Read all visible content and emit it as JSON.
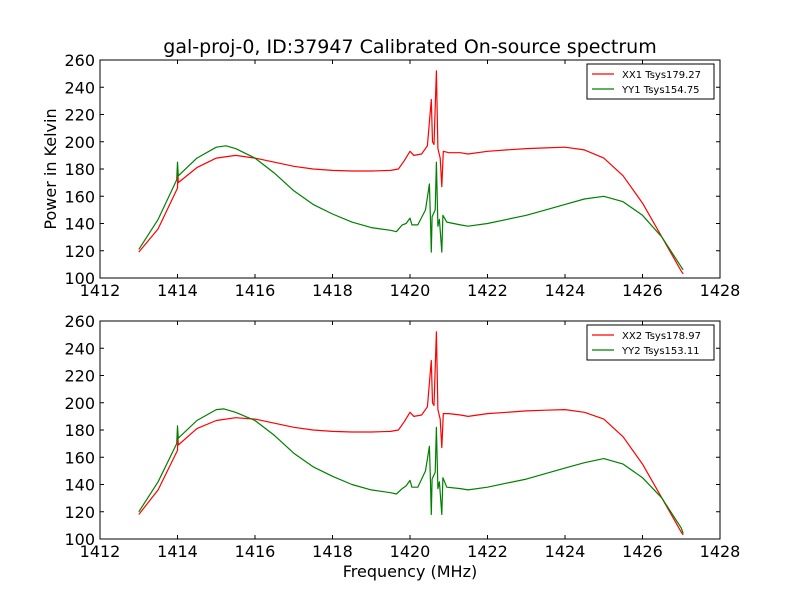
{
  "chart_data": [
    {
      "type": "line",
      "title": "gal-proj-0, ID:37947 Calibrated On-source spectrum",
      "xlabel": "",
      "ylabel": "Power in Kelvin",
      "xlim": [
        1412,
        1428
      ],
      "ylim": [
        100,
        260
      ],
      "xticks": [
        "1412",
        "1414",
        "1416",
        "1418",
        "1420",
        "1422",
        "1424",
        "1426",
        "1428"
      ],
      "yticks": [
        "100",
        "120",
        "140",
        "160",
        "180",
        "200",
        "220",
        "240",
        "260"
      ],
      "grid": false,
      "legend_position": "top-right",
      "series": [
        {
          "name": "XX1 Tsys179.27",
          "color": "#ff0000",
          "points": [
            [
              1413.0,
              119
            ],
            [
              1413.5,
              136
            ],
            [
              1414.0,
              166
            ],
            [
              1414.01,
              177
            ],
            [
              1414.02,
              170
            ],
            [
              1414.5,
              181
            ],
            [
              1415.0,
              188
            ],
            [
              1415.5,
              190
            ],
            [
              1416.0,
              188
            ],
            [
              1416.5,
              185
            ],
            [
              1417.0,
              182
            ],
            [
              1417.5,
              180
            ],
            [
              1418.0,
              179
            ],
            [
              1418.5,
              178.5
            ],
            [
              1419.0,
              178.5
            ],
            [
              1419.5,
              179
            ],
            [
              1419.7,
              180
            ],
            [
              1419.85,
              186
            ],
            [
              1420.0,
              193
            ],
            [
              1420.1,
              190
            ],
            [
              1420.3,
              191
            ],
            [
              1420.45,
              197
            ],
            [
              1420.55,
              231
            ],
            [
              1420.58,
              200
            ],
            [
              1420.62,
              198
            ],
            [
              1420.68,
              252
            ],
            [
              1420.72,
              195
            ],
            [
              1420.78,
              188
            ],
            [
              1420.82,
              167
            ],
            [
              1420.86,
              193
            ],
            [
              1421.0,
              192
            ],
            [
              1421.3,
              192
            ],
            [
              1421.5,
              191
            ],
            [
              1422.0,
              193
            ],
            [
              1422.5,
              194
            ],
            [
              1423.0,
              195
            ],
            [
              1423.5,
              195.5
            ],
            [
              1424.0,
              196
            ],
            [
              1424.5,
              194
            ],
            [
              1425.0,
              188
            ],
            [
              1425.5,
              175
            ],
            [
              1426.0,
              155
            ],
            [
              1426.5,
              130
            ],
            [
              1427.0,
              105
            ],
            [
              1427.05,
              103
            ]
          ]
        },
        {
          "name": "YY1 Tsys154.75",
          "color": "#008000",
          "points": [
            [
              1413.0,
              121
            ],
            [
              1413.5,
              143
            ],
            [
              1413.98,
              172
            ],
            [
              1414.0,
              185
            ],
            [
              1414.02,
              175
            ],
            [
              1414.5,
              188
            ],
            [
              1415.0,
              196
            ],
            [
              1415.25,
              197
            ],
            [
              1415.5,
              195
            ],
            [
              1416.0,
              188
            ],
            [
              1416.5,
              177
            ],
            [
              1417.0,
              164
            ],
            [
              1417.5,
              154
            ],
            [
              1418.0,
              147
            ],
            [
              1418.5,
              141
            ],
            [
              1419.0,
              137
            ],
            [
              1419.5,
              135
            ],
            [
              1419.65,
              134
            ],
            [
              1419.8,
              139
            ],
            [
              1419.9,
              140
            ],
            [
              1420.0,
              144
            ],
            [
              1420.05,
              139
            ],
            [
              1420.2,
              139
            ],
            [
              1420.4,
              150
            ],
            [
              1420.5,
              169
            ],
            [
              1420.53,
              142
            ],
            [
              1420.55,
              119
            ],
            [
              1420.57,
              145
            ],
            [
              1420.65,
              150
            ],
            [
              1420.68,
              185
            ],
            [
              1420.72,
              138
            ],
            [
              1420.76,
              143
            ],
            [
              1420.82,
              119
            ],
            [
              1420.85,
              146
            ],
            [
              1420.95,
              141
            ],
            [
              1421.3,
              139
            ],
            [
              1421.5,
              138
            ],
            [
              1422.0,
              140
            ],
            [
              1422.5,
              143
            ],
            [
              1423.0,
              146
            ],
            [
              1423.5,
              150
            ],
            [
              1424.0,
              154
            ],
            [
              1424.5,
              158
            ],
            [
              1425.0,
              160
            ],
            [
              1425.5,
              156
            ],
            [
              1426.0,
              146
            ],
            [
              1426.5,
              130
            ],
            [
              1427.0,
              108
            ],
            [
              1427.05,
              106
            ]
          ]
        }
      ]
    },
    {
      "type": "line",
      "title": "",
      "xlabel": "Frequency (MHz)",
      "ylabel": "",
      "xlim": [
        1412,
        1428
      ],
      "ylim": [
        100,
        260
      ],
      "xticks": [
        "1412",
        "1414",
        "1416",
        "1418",
        "1420",
        "1422",
        "1424",
        "1426",
        "1428"
      ],
      "yticks": [
        "100",
        "120",
        "140",
        "160",
        "180",
        "200",
        "220",
        "240",
        "260"
      ],
      "grid": false,
      "legend_position": "top-right",
      "series": [
        {
          "name": "XX2 Tsys178.97",
          "color": "#ff0000",
          "points": [
            [
              1413.0,
              118
            ],
            [
              1413.5,
              136
            ],
            [
              1414.0,
              165
            ],
            [
              1414.01,
              175
            ],
            [
              1414.02,
              169
            ],
            [
              1414.5,
              181
            ],
            [
              1415.0,
              187
            ],
            [
              1415.5,
              189
            ],
            [
              1416.0,
              188
            ],
            [
              1416.5,
              185
            ],
            [
              1417.0,
              182
            ],
            [
              1417.5,
              180
            ],
            [
              1418.0,
              179
            ],
            [
              1418.5,
              178.5
            ],
            [
              1419.0,
              178.5
            ],
            [
              1419.5,
              179
            ],
            [
              1419.7,
              180
            ],
            [
              1419.85,
              186
            ],
            [
              1420.0,
              193
            ],
            [
              1420.1,
              190
            ],
            [
              1420.3,
              191
            ],
            [
              1420.45,
              197
            ],
            [
              1420.55,
              231
            ],
            [
              1420.58,
              200
            ],
            [
              1420.62,
              198
            ],
            [
              1420.68,
              252
            ],
            [
              1420.72,
              195
            ],
            [
              1420.78,
              188
            ],
            [
              1420.82,
              167
            ],
            [
              1420.86,
              192
            ],
            [
              1421.0,
              192
            ],
            [
              1421.3,
              191
            ],
            [
              1421.5,
              190
            ],
            [
              1422.0,
              192
            ],
            [
              1422.5,
              193
            ],
            [
              1423.0,
              194
            ],
            [
              1423.5,
              194.5
            ],
            [
              1424.0,
              195
            ],
            [
              1424.5,
              193
            ],
            [
              1425.0,
              188
            ],
            [
              1425.5,
              175
            ],
            [
              1426.0,
              155
            ],
            [
              1426.5,
              130
            ],
            [
              1427.0,
              105
            ],
            [
              1427.05,
              103
            ]
          ]
        },
        {
          "name": "YY2 Tsys153.11",
          "color": "#008000",
          "points": [
            [
              1413.0,
              120
            ],
            [
              1413.5,
              142
            ],
            [
              1413.98,
              170
            ],
            [
              1414.0,
              183
            ],
            [
              1414.02,
              174
            ],
            [
              1414.5,
              187
            ],
            [
              1415.0,
              195
            ],
            [
              1415.2,
              195.5
            ],
            [
              1415.5,
              193
            ],
            [
              1416.0,
              187
            ],
            [
              1416.5,
              176
            ],
            [
              1417.0,
              163
            ],
            [
              1417.5,
              153
            ],
            [
              1418.0,
              146
            ],
            [
              1418.5,
              140
            ],
            [
              1419.0,
              136
            ],
            [
              1419.5,
              134
            ],
            [
              1419.65,
              133
            ],
            [
              1419.8,
              137
            ],
            [
              1419.9,
              139
            ],
            [
              1420.0,
              143
            ],
            [
              1420.05,
              138
            ],
            [
              1420.2,
              138
            ],
            [
              1420.4,
              150
            ],
            [
              1420.5,
              168
            ],
            [
              1420.53,
              141
            ],
            [
              1420.55,
              118
            ],
            [
              1420.57,
              144
            ],
            [
              1420.65,
              149
            ],
            [
              1420.68,
              182
            ],
            [
              1420.72,
              137
            ],
            [
              1420.76,
              142
            ],
            [
              1420.82,
              118
            ],
            [
              1420.85,
              145
            ],
            [
              1420.95,
              138
            ],
            [
              1421.3,
              137
            ],
            [
              1421.5,
              136
            ],
            [
              1422.0,
              138
            ],
            [
              1422.5,
              141
            ],
            [
              1423.0,
              144
            ],
            [
              1423.5,
              148
            ],
            [
              1424.0,
              152
            ],
            [
              1424.5,
              156
            ],
            [
              1425.0,
              159
            ],
            [
              1425.5,
              155
            ],
            [
              1426.0,
              145
            ],
            [
              1426.5,
              130
            ],
            [
              1427.0,
              108
            ],
            [
              1427.05,
              104
            ]
          ]
        }
      ]
    }
  ]
}
